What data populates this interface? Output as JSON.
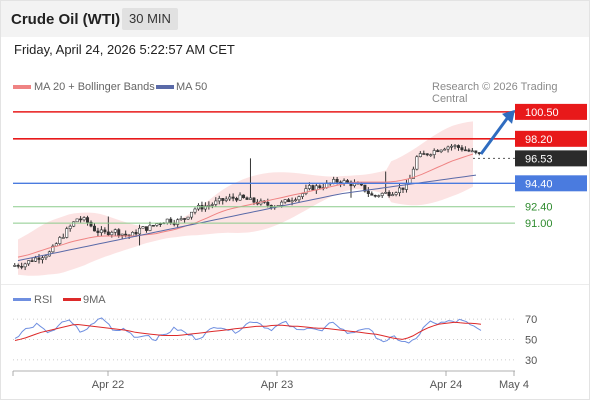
{
  "header": {
    "title": "Crude Oil (WTI)",
    "timeframe": "30 MIN",
    "timestamp": "Friday, April 24, 2026 5:22:57 AM CET"
  },
  "legend": {
    "ma20": "MA 20 + Bollinger Bands",
    "ma50": "MA 50",
    "source": "Research © 2026 Trading Central",
    "rsi": "RSI",
    "rsi_ma": "9MA"
  },
  "colors": {
    "resistance": "#e8191a",
    "support_blue": "#4a7bdf",
    "support_green": "#8ccb8c",
    "last_price": "#2b2b2b",
    "candle": "#333333",
    "ma20": "#ef8383",
    "ma50": "#5a6aa8",
    "bollinger": "#fbdcdc",
    "arrow": "#2f6cc0",
    "rsi_line": "#6f8fe0",
    "rsi_ma_line": "#dd2a2a"
  },
  "chart_data": [
    {
      "type": "candlestick",
      "x_labels": [
        "Apr 22",
        "Apr 23",
        "Apr 24",
        "May 4"
      ],
      "ylim": [
        86.4,
        101.6
      ],
      "levels": [
        {
          "value": 100.5,
          "label": "100.50",
          "kind": "resistance"
        },
        {
          "value": 98.2,
          "label": "98.20",
          "kind": "resistance"
        },
        {
          "value": 96.53,
          "label": "96.53",
          "kind": "last"
        },
        {
          "value": 94.4,
          "label": "94.40",
          "kind": "pivot"
        },
        {
          "value": 92.4,
          "label": "92.40",
          "kind": "support"
        },
        {
          "value": 91.0,
          "label": "91.00",
          "kind": "support"
        }
      ],
      "series": [
        {
          "name": "MA 20 + Bollinger Bands",
          "values": []
        },
        {
          "name": "MA 50",
          "values": []
        }
      ],
      "close_path": [
        87.4,
        87.5,
        87.9,
        88.2,
        88.5,
        89.6,
        90.5,
        91.4,
        91.2,
        90.4,
        90.1,
        90.4,
        90.1,
        89.9,
        90.5,
        90.6,
        91.0,
        91.3,
        91.1,
        91.4,
        92.2,
        92.4,
        92.6,
        92.9,
        93.1,
        93.2,
        93.0,
        92.8,
        92.6,
        92.5,
        92.7,
        93.1,
        93.4,
        94.0,
        94.1,
        94.3,
        94.6,
        94.5,
        94.3,
        94.0,
        93.3,
        93.5,
        93.6,
        93.9,
        94.2,
        96.6,
        96.9,
        97.2,
        97.5,
        97.6,
        97.4,
        97.1,
        96.8
      ],
      "ma20_path": [
        88.1,
        88.3,
        88.6,
        88.9,
        89.1,
        89.4,
        89.6,
        89.8,
        89.9,
        89.9,
        89.9,
        89.9,
        90.0,
        90.1,
        90.3,
        90.5,
        90.8,
        91.1,
        91.5,
        91.9,
        92.2,
        92.4,
        92.6,
        92.8,
        93.0,
        93.2,
        93.4,
        93.6,
        93.8,
        94.0,
        94.2,
        94.4,
        94.5,
        94.5,
        94.5,
        94.5,
        94.6,
        94.8,
        95.1,
        95.5,
        95.9,
        96.3,
        96.6,
        96.9
      ],
      "ma50_path": [
        87.8,
        88.1,
        88.4,
        88.7,
        89.0,
        89.3,
        89.6,
        89.9,
        90.2,
        90.5,
        90.8,
        91.1,
        91.4,
        91.7,
        92.0,
        92.3,
        92.6,
        92.9,
        93.2,
        93.5,
        93.7,
        93.9,
        94.1,
        94.3,
        94.5,
        94.7,
        94.9,
        95.1
      ],
      "trend_arrow": {
        "from": 96.9,
        "to": 100.5
      }
    },
    {
      "type": "line",
      "title": "RSI",
      "yticks": [
        70,
        50,
        30
      ],
      "ylim": [
        25,
        78
      ],
      "series": [
        {
          "name": "RSI",
          "values": [
            52,
            58,
            62,
            66,
            60,
            57,
            63,
            70,
            64,
            58,
            61,
            66,
            72,
            63,
            57,
            61,
            55,
            52,
            56,
            50,
            53,
            57,
            61,
            58,
            54,
            51,
            55,
            60,
            64,
            61,
            57,
            61,
            66,
            69,
            64,
            60,
            63,
            67,
            62,
            58,
            63,
            61,
            57,
            64,
            66,
            60,
            55,
            59,
            62,
            57,
            51,
            47,
            53,
            49,
            46,
            50,
            60,
            67,
            64,
            69,
            66,
            70,
            68,
            64,
            60
          ]
        },
        {
          "name": "9MA",
          "values": [
            49,
            51,
            54,
            57,
            59,
            61,
            63,
            65,
            64,
            63,
            62,
            61,
            60,
            59,
            57,
            56,
            55,
            54,
            54,
            54,
            55,
            56,
            57,
            58,
            59,
            60,
            61,
            62,
            63,
            63,
            64,
            64,
            63,
            63,
            62,
            61,
            61,
            60,
            59,
            58,
            57,
            56,
            55,
            53,
            51,
            50,
            53,
            58,
            62,
            65,
            66,
            67,
            66,
            66,
            65
          ]
        }
      ]
    }
  ]
}
